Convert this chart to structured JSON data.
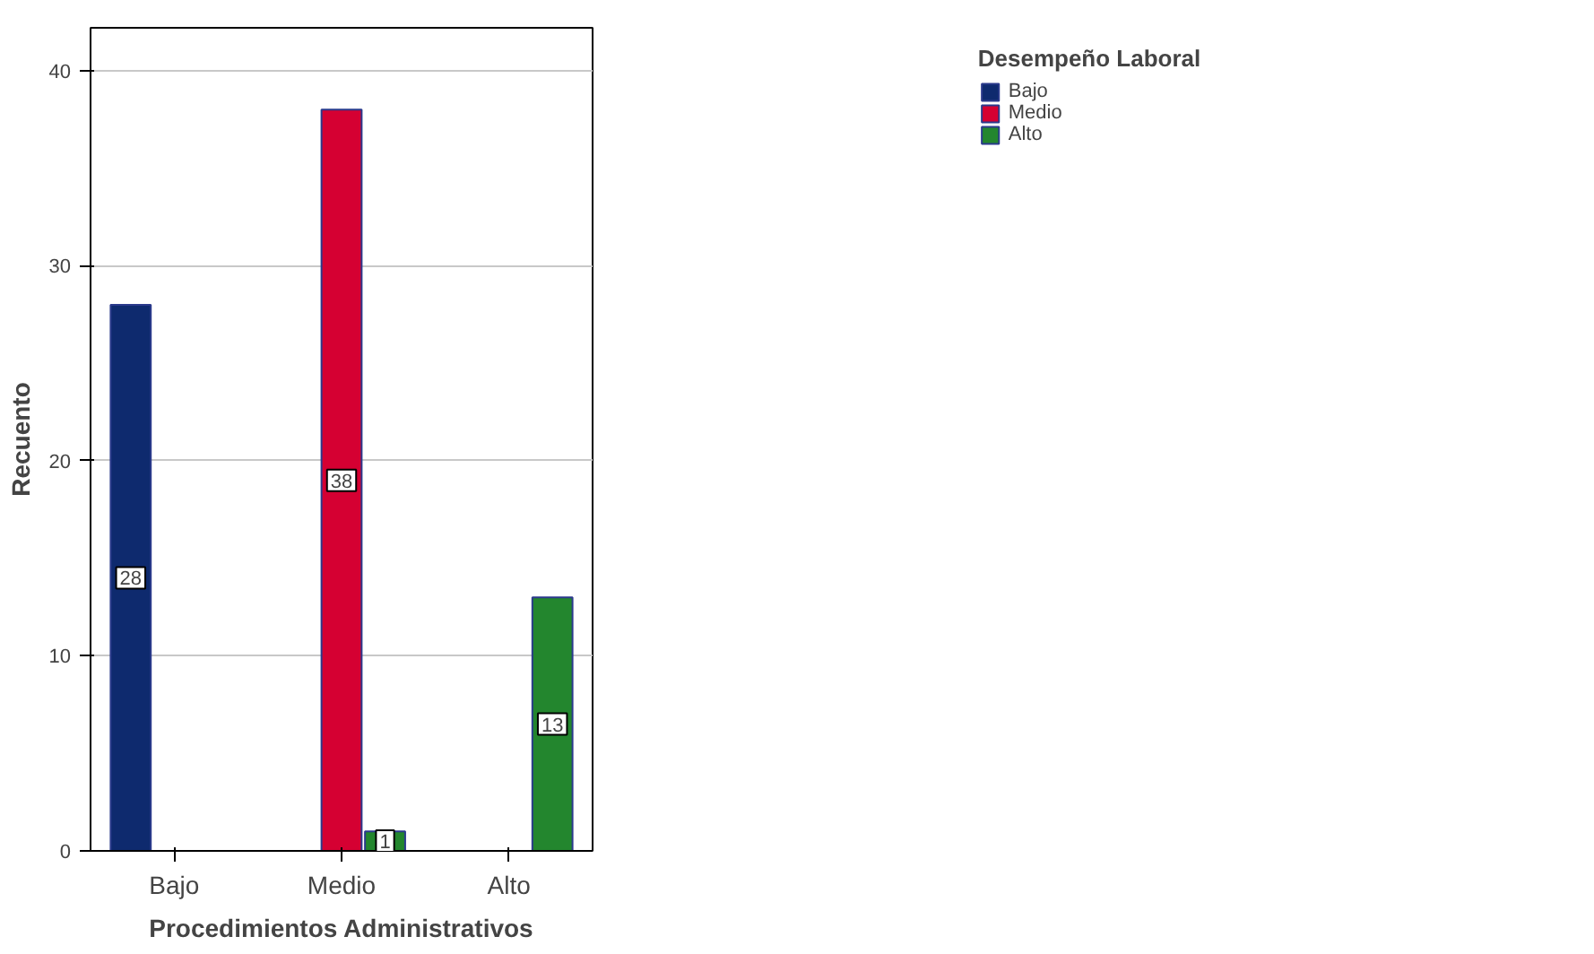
{
  "chart_data": {
    "type": "bar",
    "xlabel": "Procedimientos Administrativos",
    "ylabel": "Recuento",
    "legend_title": "Desempeño Laboral",
    "categories": [
      "Bajo",
      "Medio",
      "Alto"
    ],
    "series": [
      {
        "name": "Bajo",
        "color": "#0e2a6e",
        "values": [
          28,
          null,
          null
        ]
      },
      {
        "name": "Medio",
        "color": "#d50032",
        "values": [
          null,
          38,
          null
        ]
      },
      {
        "name": "Alto",
        "color": "#23862e",
        "values": [
          null,
          1,
          13
        ]
      }
    ],
    "ylim": [
      0,
      42.2
    ],
    "yticks": [
      0,
      10,
      20,
      30,
      40
    ],
    "grid": "y",
    "legend": "top right",
    "data_labels": true
  }
}
